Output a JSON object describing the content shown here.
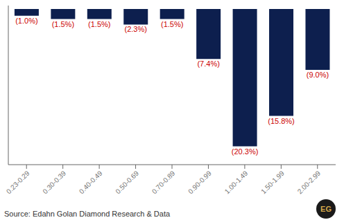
{
  "chart_data": {
    "type": "bar",
    "categories": [
      "0.23-0.29",
      "0.30-0.39",
      "0.40-0.49",
      "0.50-0.69",
      "0.70-0.89",
      "0.90-0.99",
      "1.00-1.49",
      "1.50-1.99",
      "2.00-2.99"
    ],
    "values": [
      -1.0,
      -1.5,
      -1.5,
      -2.3,
      -1.5,
      -7.4,
      -20.3,
      -15.8,
      -9.0
    ],
    "value_labels": [
      "(1.0%)",
      "(1.5%)",
      "(1.5%)",
      "(2.3%)",
      "(1.5%)",
      "(7.4%)",
      "(20.3%)",
      "(15.8%)",
      "(9.0%)"
    ],
    "data_labels": true,
    "color": "#0d1f4e",
    "ylim": [
      -23,
      0.5
    ],
    "tick_labels": "x",
    "annotations": [
      {
        "text": "Source: Edahn Golan Diamond Research & Data",
        "color": "#333333"
      },
      {
        "text": "EG",
        "color": "#d4a84b"
      }
    ]
  }
}
